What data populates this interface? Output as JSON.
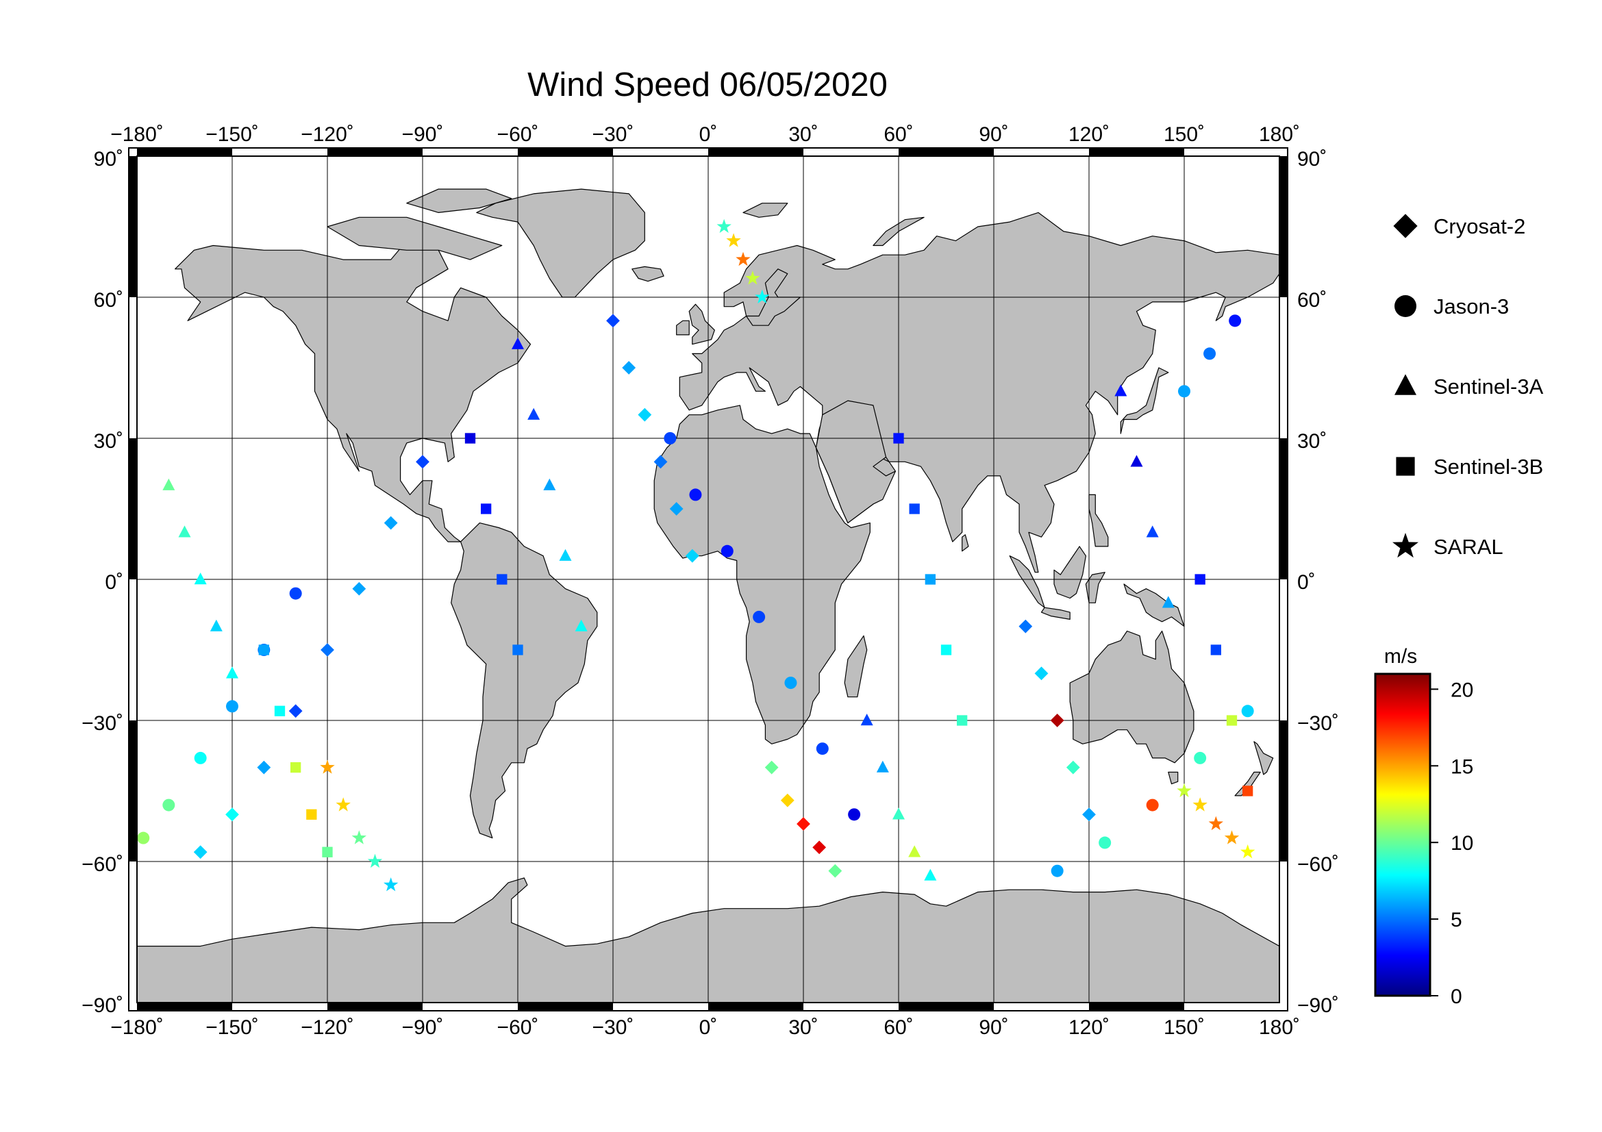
{
  "title": "Wind Speed 06/05/2020",
  "map": {
    "projection": "equirectangular",
    "lon_range": [
      -180,
      180
    ],
    "lat_range": [
      -90,
      90
    ],
    "grid": true,
    "lon_ticks": [
      -180,
      -150,
      -120,
      -90,
      -60,
      -30,
      0,
      30,
      60,
      90,
      120,
      150,
      180
    ],
    "lat_ticks": [
      90,
      60,
      30,
      0,
      -30,
      -60,
      -90
    ],
    "degree_symbol": "˚",
    "ocean_color": "#ffffff",
    "land_color": "#bebebe",
    "coast_color": "#000000",
    "frame_color": "#000000"
  },
  "legend": {
    "placement": "right",
    "items": [
      {
        "label": "Cryosat-2",
        "icon": "diamond-icon"
      },
      {
        "label": "Jason-3",
        "icon": "circle-icon"
      },
      {
        "label": "Sentinel-3A",
        "icon": "triangle-icon"
      },
      {
        "label": "Sentinel-3B",
        "icon": "square-icon"
      },
      {
        "label": "SARAL",
        "icon": "star-icon"
      }
    ]
  },
  "colorbar": {
    "label": "m/s",
    "min": 0,
    "max": 21,
    "ticks": [
      0,
      5,
      10,
      15,
      20
    ],
    "colormap": "jet",
    "stops": [
      "#00007f",
      "#0000ff",
      "#007fff",
      "#00ffff",
      "#7fff7f",
      "#ffff00",
      "#ff7f00",
      "#ff0000",
      "#7f0000"
    ]
  },
  "chart_data": {
    "type": "scatter",
    "title": "Wind Speed 06/05/2020",
    "xlim": [
      -180,
      180
    ],
    "ylim": [
      -90,
      90
    ],
    "value_unit": "m/s",
    "series": [
      {
        "name": "Jason-3",
        "marker": "circle",
        "x": [
          -178,
          -170,
          -160,
          -150,
          -140,
          -130
        ],
        "y": [
          -55,
          -48,
          -38,
          -27,
          -15,
          -3
        ],
        "values": [
          11,
          10,
          8,
          6,
          5,
          4
        ]
      },
      {
        "name": "Jason-3",
        "marker": "circle",
        "x": [
          -12,
          -4,
          6,
          16,
          26,
          36,
          46
        ],
        "y": [
          30,
          18,
          6,
          -8,
          -22,
          -36,
          -50
        ],
        "values": [
          4,
          3,
          3,
          4,
          6,
          4,
          2
        ]
      },
      {
        "name": "Jason-3",
        "marker": "circle",
        "x": [
          110,
          125,
          140,
          155,
          170
        ],
        "y": [
          -62,
          -56,
          -48,
          -38,
          -28
        ],
        "values": [
          6,
          9,
          17,
          9,
          7
        ]
      },
      {
        "name": "Jason-3",
        "marker": "circle",
        "x": [
          150,
          158,
          166
        ],
        "y": [
          40,
          48,
          55
        ],
        "values": [
          6,
          5,
          3
        ]
      },
      {
        "name": "Cryosat-2",
        "marker": "diamond",
        "x": [
          -160,
          -150,
          -140,
          -130,
          -120,
          -110,
          -100,
          -90
        ],
        "y": [
          -58,
          -50,
          -40,
          -28,
          -15,
          -2,
          12,
          25
        ],
        "values": [
          7,
          8,
          6,
          4,
          5,
          6,
          6,
          4
        ]
      },
      {
        "name": "Cryosat-2",
        "marker": "diamond",
        "x": [
          -30,
          -25,
          -20,
          -15,
          -10,
          -5
        ],
        "y": [
          55,
          45,
          35,
          25,
          15,
          5
        ],
        "values": [
          4,
          6,
          7,
          5,
          6,
          7
        ]
      },
      {
        "name": "Cryosat-2",
        "marker": "diamond",
        "x": [
          20,
          25,
          30,
          35,
          40
        ],
        "y": [
          -40,
          -47,
          -52,
          -57,
          -62
        ],
        "values": [
          10,
          14,
          18,
          19,
          10
        ]
      },
      {
        "name": "Cryosat-2",
        "marker": "diamond",
        "x": [
          100,
          105,
          110,
          115,
          120
        ],
        "y": [
          -10,
          -20,
          -30,
          -40,
          -50
        ],
        "values": [
          5,
          7,
          20,
          9,
          6
        ]
      },
      {
        "name": "Sentinel-3A",
        "marker": "triangle",
        "x": [
          -170,
          -165,
          -160,
          -155,
          -150
        ],
        "y": [
          20,
          10,
          0,
          -10,
          -20
        ],
        "values": [
          10,
          9,
          8,
          7,
          8
        ]
      },
      {
        "name": "Sentinel-3A",
        "marker": "triangle",
        "x": [
          -60,
          -55,
          -50,
          -45,
          -40
        ],
        "y": [
          50,
          35,
          20,
          5,
          -10
        ],
        "values": [
          3,
          4,
          6,
          7,
          8
        ]
      },
      {
        "name": "Sentinel-3A",
        "marker": "triangle",
        "x": [
          50,
          55,
          60,
          65,
          70
        ],
        "y": [
          -30,
          -40,
          -50,
          -58,
          -63
        ],
        "values": [
          4,
          6,
          9,
          12,
          8
        ]
      },
      {
        "name": "Sentinel-3A",
        "marker": "triangle",
        "x": [
          130,
          135,
          140,
          145
        ],
        "y": [
          40,
          25,
          10,
          -5
        ],
        "values": [
          3,
          2,
          4,
          6
        ]
      },
      {
        "name": "Sentinel-3B",
        "marker": "square",
        "x": [
          -140,
          -135,
          -130,
          -125,
          -120
        ],
        "y": [
          -15,
          -28,
          -40,
          -50,
          -58
        ],
        "values": [
          6,
          8,
          12,
          14,
          10
        ]
      },
      {
        "name": "Sentinel-3B",
        "marker": "square",
        "x": [
          -75,
          -70,
          -65,
          -60
        ],
        "y": [
          30,
          15,
          0,
          -15
        ],
        "values": [
          2,
          3,
          4,
          5
        ]
      },
      {
        "name": "Sentinel-3B",
        "marker": "square",
        "x": [
          60,
          65,
          70,
          75,
          80
        ],
        "y": [
          30,
          15,
          0,
          -15,
          -30
        ],
        "values": [
          3,
          4,
          6,
          8,
          9
        ]
      },
      {
        "name": "Sentinel-3B",
        "marker": "square",
        "x": [
          155,
          160,
          165,
          170
        ],
        "y": [
          0,
          -15,
          -30,
          -45
        ],
        "values": [
          3,
          4,
          12,
          17
        ]
      },
      {
        "name": "SARAL",
        "marker": "star",
        "x": [
          -120,
          -115,
          -110,
          -105,
          -100
        ],
        "y": [
          -40,
          -48,
          -55,
          -60,
          -65
        ],
        "values": [
          15,
          14,
          10,
          9,
          7
        ]
      },
      {
        "name": "SARAL",
        "marker": "star",
        "x": [
          5,
          8,
          11,
          14,
          17
        ],
        "y": [
          75,
          72,
          68,
          64,
          60
        ],
        "values": [
          9,
          14,
          16,
          12,
          8
        ]
      },
      {
        "name": "SARAL",
        "marker": "star",
        "x": [
          150,
          155,
          160,
          165,
          170
        ],
        "y": [
          -45,
          -48,
          -52,
          -55,
          -58
        ],
        "values": [
          12,
          14,
          16,
          15,
          13
        ]
      }
    ]
  }
}
